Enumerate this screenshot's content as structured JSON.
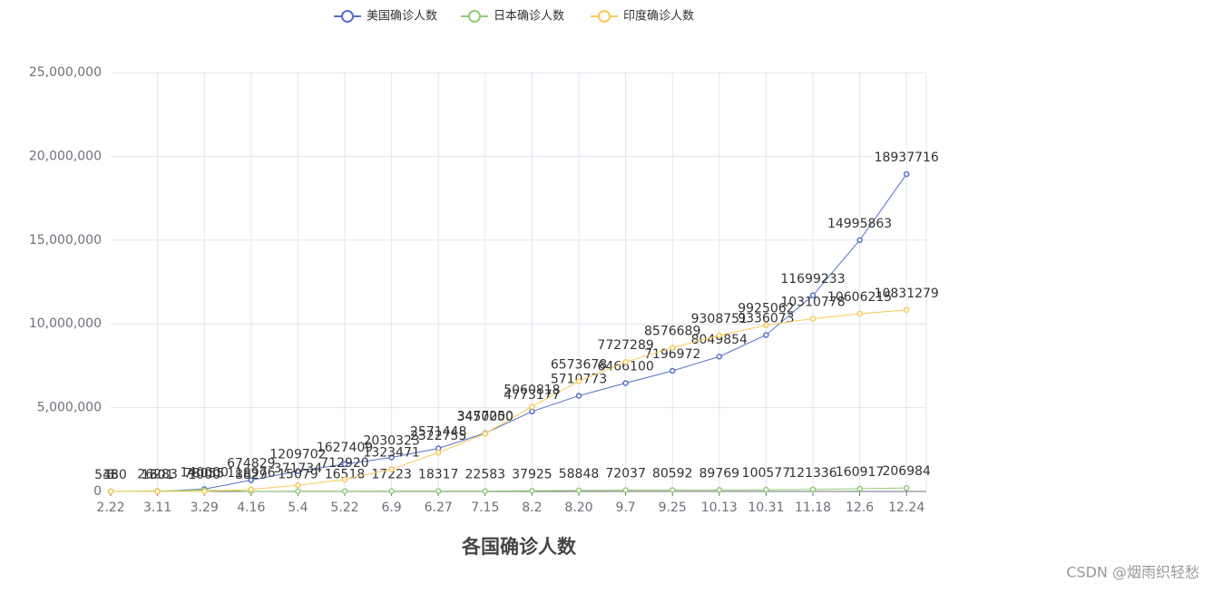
{
  "chart_data": {
    "type": "line",
    "title": "各国确诊人数",
    "watermark": "CSDN @烟雨织轻愁",
    "categories": [
      "2.22",
      "3.11",
      "3.29",
      "4.16",
      "5.4",
      "5.22",
      "6.9",
      "6.27",
      "7.15",
      "8.2",
      "8.20",
      "9.7",
      "9.25",
      "10.13",
      "10.31",
      "11.18",
      "12.6",
      "12.24"
    ],
    "series": [
      {
        "name": "美国确诊人数",
        "color": "#5470c6",
        "values": [
          35,
          1301,
          140000,
          674829,
          1209702,
          1627409,
          2030323,
          2571448,
          3477250,
          4773177,
          5710773,
          6466100,
          7196972,
          8049854,
          9336073,
          11699233,
          14995863,
          18937716
        ]
      },
      {
        "name": "日本确诊人数",
        "color": "#91cc75",
        "values": [
          5480,
          26283,
          78055,
          8829,
          15079,
          16518,
          17223,
          18317,
          22583,
          37925,
          58848,
          72037,
          80592,
          89769,
          100577,
          121336,
          160917,
          206984
        ]
      },
      {
        "name": "印度确诊人数",
        "color": "#fac858",
        "values": [
          3,
          60,
          1000,
          118976,
          371734,
          712920,
          1323471,
          2322755,
          3450000,
          5060818,
          6573678,
          7727289,
          8576689,
          9308751,
          9925062,
          10310778,
          10606215,
          10831279
        ]
      }
    ],
    "ylim": [
      0,
      25000000
    ],
    "yticks": [
      0,
      {
        "value": 5000000,
        "label": "5,000,000"
      },
      {
        "value": 10000000,
        "label": "10,000,000"
      },
      {
        "value": 15000000,
        "label": "15,000,000"
      },
      {
        "value": 20000000,
        "label": "20,000,000"
      },
      {
        "value": 25000000,
        "label": "25,000,000"
      }
    ],
    "grid": true,
    "legend": "top"
  }
}
